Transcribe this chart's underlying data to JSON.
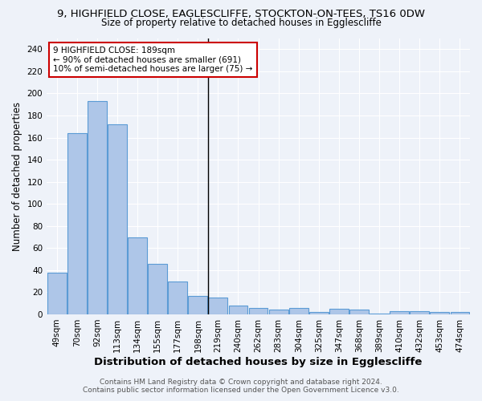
{
  "title_line1": "9, HIGHFIELD CLOSE, EAGLESCLIFFE, STOCKTON-ON-TEES, TS16 0DW",
  "title_line2": "Size of property relative to detached houses in Egglescliffe",
  "xlabel": "Distribution of detached houses by size in Egglescliffe",
  "ylabel": "Number of detached properties",
  "categories": [
    "49sqm",
    "70sqm",
    "92sqm",
    "113sqm",
    "134sqm",
    "155sqm",
    "177sqm",
    "198sqm",
    "219sqm",
    "240sqm",
    "262sqm",
    "283sqm",
    "304sqm",
    "325sqm",
    "347sqm",
    "368sqm",
    "389sqm",
    "410sqm",
    "432sqm",
    "453sqm",
    "474sqm"
  ],
  "values": [
    38,
    164,
    193,
    172,
    70,
    46,
    30,
    17,
    15,
    8,
    6,
    4,
    6,
    2,
    5,
    4,
    1,
    3,
    3,
    2,
    2
  ],
  "bar_color": "#aec6e8",
  "bar_edge_color": "#5b9bd5",
  "vline_color": "#000000",
  "annotation_box_color": "#ffffff",
  "annotation_box_edge": "#cc0000",
  "vline_x": 7.5,
  "ylim": [
    0,
    250
  ],
  "yticks": [
    0,
    20,
    40,
    60,
    80,
    100,
    120,
    140,
    160,
    180,
    200,
    220,
    240
  ],
  "annotation_text_line1": "9 HIGHFIELD CLOSE: 189sqm",
  "annotation_text_line2": "← 90% of detached houses are smaller (691)",
  "annotation_text_line3": "10% of semi-detached houses are larger (75) →",
  "footer_line1": "Contains HM Land Registry data © Crown copyright and database right 2024.",
  "footer_line2": "Contains public sector information licensed under the Open Government Licence v3.0.",
  "bg_color": "#eef2f9",
  "grid_color": "#ffffff",
  "title1_fontsize": 9.5,
  "title2_fontsize": 8.5,
  "axis_label_fontsize": 8.5,
  "tick_fontsize": 7.5,
  "footer_fontsize": 6.5
}
